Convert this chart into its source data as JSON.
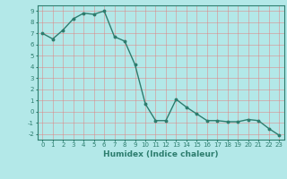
{
  "xlabel": "Humidex (Indice chaleur)",
  "x": [
    0,
    1,
    2,
    3,
    4,
    5,
    6,
    7,
    8,
    9,
    10,
    11,
    12,
    13,
    14,
    15,
    16,
    17,
    18,
    19,
    20,
    21,
    22,
    23
  ],
  "y": [
    7.0,
    6.5,
    7.3,
    8.3,
    8.8,
    8.7,
    9.0,
    6.7,
    6.3,
    4.2,
    0.7,
    -0.8,
    -0.8,
    1.1,
    0.4,
    -0.2,
    -0.8,
    -0.8,
    -0.9,
    -0.9,
    -0.7,
    -0.8,
    -1.5,
    -2.1
  ],
  "ylim": [
    -2.5,
    9.5
  ],
  "xlim": [
    -0.5,
    23.5
  ],
  "yticks": [
    -2,
    -1,
    0,
    1,
    2,
    3,
    4,
    5,
    6,
    7,
    8,
    9
  ],
  "xticks": [
    0,
    1,
    2,
    3,
    4,
    5,
    6,
    7,
    8,
    9,
    10,
    11,
    12,
    13,
    14,
    15,
    16,
    17,
    18,
    19,
    20,
    21,
    22,
    23
  ],
  "line_color": "#2d7d6e",
  "marker": "o",
  "marker_size": 1.8,
  "line_width": 1.0,
  "bg_color": "#b3e8e8",
  "grid_color": "#e08080",
  "grid_alpha": 0.7,
  "tick_fontsize": 5.0,
  "xlabel_fontsize": 6.5
}
